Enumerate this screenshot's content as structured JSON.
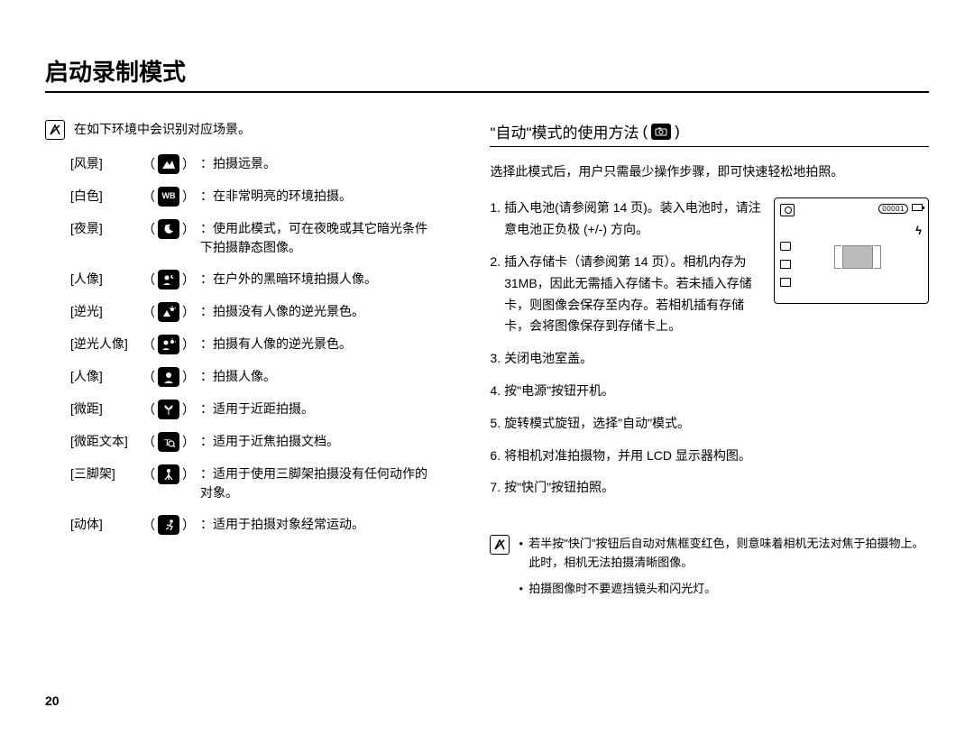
{
  "page": {
    "title": "启动录制模式",
    "number": "20"
  },
  "left": {
    "intro": "在如下环境中会识别对应场景。",
    "scenes": [
      {
        "label": "[风景]",
        "icon": "mountain",
        "desc": "：拍摄远景。"
      },
      {
        "label": "[白色]",
        "icon": "wb",
        "desc": "：在非常明亮的环境拍摄。"
      },
      {
        "label": "[夜景]",
        "icon": "moon",
        "desc": "：使用此模式，可在夜晚或其它暗光条件下拍摄静态图像。"
      },
      {
        "label": "[人像]",
        "icon": "night-portrait",
        "desc": "：在户外的黑暗环境拍摄人像。"
      },
      {
        "label": "[逆光]",
        "icon": "backlight",
        "desc": "：拍摄没有人像的逆光景色。"
      },
      {
        "label": "[逆光人像]",
        "icon": "backlight-portrait",
        "desc": "：拍摄有人像的逆光景色。"
      },
      {
        "label": "[人像]",
        "icon": "portrait",
        "desc": "：拍摄人像。"
      },
      {
        "label": "[微距]",
        "icon": "macro",
        "desc": "：适用于近距拍摄。"
      },
      {
        "label": "[微距文本]",
        "icon": "macro-text",
        "desc": "：适用于近焦拍摄文档。"
      },
      {
        "label": "[三脚架]",
        "icon": "tripod",
        "desc": "：适用于使用三脚架拍摄没有任何动作的对象。"
      },
      {
        "label": "[动体]",
        "icon": "action",
        "desc": "：适用于拍摄对象经常运动。"
      }
    ]
  },
  "right": {
    "section_title_pre": "\"自动\"模式的使用方法",
    "section_title_open": "(",
    "section_title_close": ")",
    "intro": "选择此模式后，用户只需最少操作步骤，即可快速轻松地拍照。",
    "steps": [
      "插入电池(请参阅第 14 页)。装入电池时，请注意电池正负极 (+/-) 方向。",
      "插入存储卡（请参阅第 14 页）。相机内存为 31MB，因此无需插入存储卡。若未插入存储卡，则图像会保存至内存。若相机插有存储卡，会将图像保存到存储卡上。",
      "关闭电池室盖。",
      "按\"电源\"按钮开机。",
      "旋转模式旋钮，选择\"自动\"模式。",
      "将相机对准拍摄物，并用 LCD 显示器构图。",
      "按\"快门\"按钮拍照。"
    ],
    "lcd_counter": "00001",
    "tips": [
      "若半按\"快门\"按钮后自动对焦框变红色，则意味着相机无法对焦于拍摄物上。此时，相机无法拍摄清晰图像。",
      "拍摄图像时不要遮挡镜头和闪光灯。"
    ]
  }
}
